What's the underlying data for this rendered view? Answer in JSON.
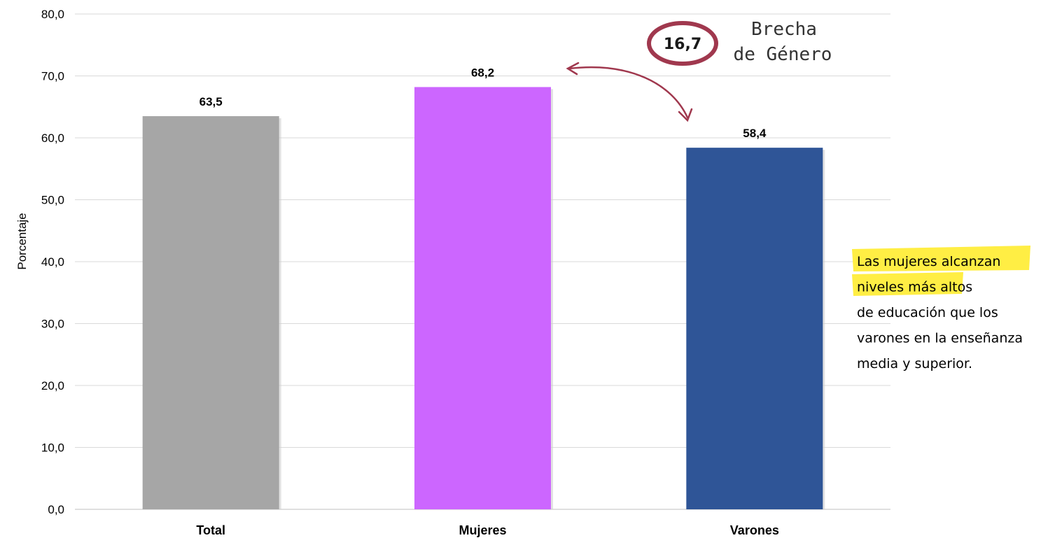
{
  "chart_data": {
    "type": "bar",
    "categories": [
      "Total",
      "Mujeres",
      "Varones"
    ],
    "values": [
      63.5,
      68.2,
      58.4
    ],
    "value_labels": [
      "63,5",
      "68,2",
      "58,4"
    ],
    "bar_colors": [
      "#a6a6a6",
      "#cc66ff",
      "#2f5597"
    ],
    "ylabel": "Porcentaje",
    "xlabel": "",
    "ylim": [
      0,
      80
    ],
    "yticks": [
      "0,0",
      "10,0",
      "20,0",
      "30,0",
      "40,0",
      "50,0",
      "60,0",
      "70,0",
      "80,0"
    ],
    "grid": true,
    "legend": "none"
  },
  "annotations": {
    "gap_value": "16,7",
    "gap_caption_line1": "Brecha",
    "gap_caption_line2": "de Género",
    "gap_color": "#a0384e",
    "arrow_color": "#a0384e",
    "note_lines": [
      "Las mujeres alcanzan",
      "niveles más altos",
      "de educación que los",
      "varones en la enseñanza",
      "media y superior."
    ],
    "note_highlight_color": "#ffee44"
  }
}
